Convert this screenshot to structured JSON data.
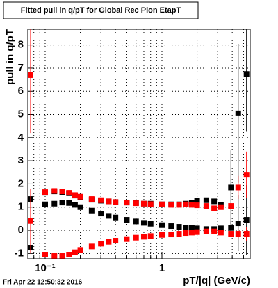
{
  "chart_data": {
    "type": "scatter",
    "title": "Fitted pull in q/pT for Global Rec Pion EtapT",
    "y_label": "pull in q/pT",
    "x_label": "pT/|q| (GeV/c)",
    "footer": "Fri Apr 22 12:50:32 2016",
    "log_x": true,
    "grid": true,
    "xlim": [
      0.071,
      5.7
    ],
    "ylim": [
      -1.23,
      8.68
    ],
    "xticks": [
      {
        "value": 0.1,
        "label": "10⁻¹"
      },
      1
    ],
    "xminorticks": [
      0.08,
      0.09,
      0.2,
      0.3,
      0.4,
      0.5,
      0.6,
      0.7,
      0.8,
      0.9,
      2,
      3,
      4,
      5
    ],
    "yticks": [
      -1,
      0,
      1,
      2,
      3,
      4,
      5,
      6,
      7,
      8
    ],
    "x": [
      0.075,
      0.1,
      0.12,
      0.14,
      0.16,
      0.18,
      0.2,
      0.25,
      0.3,
      0.35,
      0.4,
      0.5,
      0.6,
      0.7,
      0.8,
      1.0,
      1.2,
      1.4,
      1.6,
      1.8,
      2.0,
      2.4,
      2.8,
      3.2,
      3.9,
      4.5,
      5.3
    ],
    "series": [
      {
        "color": "#000000",
        "values": [
          1.35,
          1.12,
          1.15,
          1.2,
          1.18,
          1.1,
          1.0,
          0.85,
          0.72,
          0.62,
          0.55,
          0.45,
          0.38,
          0.32,
          0.28,
          0.22,
          0.18,
          0.15,
          0.12,
          0.1,
          0.08,
          0.05,
          0.05,
          0.08,
          0.1,
          0.3,
          0.45
        ],
        "errors": [
          0.1,
          0.05,
          0.05,
          0.05,
          0.05,
          0.05,
          0.05,
          0.05,
          0.05,
          0.05,
          0.05,
          0.05,
          0.05,
          0.05,
          0.05,
          0.05,
          0.05,
          0.05,
          0.05,
          0.05,
          0.05,
          0.05,
          0.05,
          0.08,
          0.3,
          1.2,
          1.5
        ]
      },
      {
        "color": "#000000",
        "values": [
          -0.75,
          1.62,
          1.68,
          1.65,
          1.6,
          1.5,
          1.42,
          1.32,
          1.28,
          1.25,
          1.22,
          1.2,
          1.18,
          1.15,
          1.15,
          1.12,
          1.12,
          1.12,
          1.15,
          1.2,
          1.28,
          1.3,
          1.25,
          1.1,
          1.85,
          5.05,
          6.75
        ],
        "errors": [
          0.15,
          0.05,
          0.05,
          0.05,
          0.05,
          0.05,
          0.05,
          0.05,
          0.05,
          0.05,
          0.05,
          0.05,
          0.05,
          0.05,
          0.05,
          0.05,
          0.05,
          0.05,
          0.05,
          0.05,
          0.05,
          0.05,
          0.05,
          0.1,
          1.6,
          3.0,
          2.5
        ]
      },
      {
        "color": "#ff0000",
        "values": [
          6.7,
          1.65,
          1.7,
          1.68,
          1.62,
          1.52,
          1.45,
          1.35,
          1.3,
          1.25,
          1.22,
          1.2,
          1.17,
          1.15,
          1.13,
          1.12,
          1.1,
          1.1,
          1.12,
          1.1,
          1.08,
          1.05,
          0.95,
          1.0,
          1.05,
          1.85,
          2.4
        ],
        "errors": [
          2.5,
          0.05,
          0.05,
          0.05,
          0.05,
          0.05,
          0.05,
          0.05,
          0.05,
          0.05,
          0.05,
          0.05,
          0.05,
          0.05,
          0.05,
          0.05,
          0.05,
          0.05,
          0.05,
          0.05,
          0.05,
          0.05,
          0.05,
          0.05,
          0.1,
          0.5,
          1.0
        ]
      },
      {
        "color": "#ff0000",
        "values": [
          0.4,
          -1.05,
          -1.1,
          -1.1,
          -1.05,
          -0.95,
          -0.85,
          -0.7,
          -0.58,
          -0.5,
          -0.45,
          -0.38,
          -0.32,
          -0.28,
          -0.25,
          -0.2,
          -0.18,
          -0.15,
          -0.12,
          -0.1,
          -0.08,
          -0.05,
          -0.05,
          -0.1,
          -0.15,
          -0.15,
          -0.15
        ],
        "errors": [
          1.4,
          0.05,
          0.05,
          0.05,
          0.05,
          0.05,
          0.05,
          0.05,
          0.05,
          0.05,
          0.05,
          0.05,
          0.05,
          0.05,
          0.05,
          0.05,
          0.05,
          0.05,
          0.05,
          0.05,
          0.05,
          0.05,
          0.05,
          0.05,
          0.1,
          0.2,
          0.3
        ]
      }
    ]
  }
}
